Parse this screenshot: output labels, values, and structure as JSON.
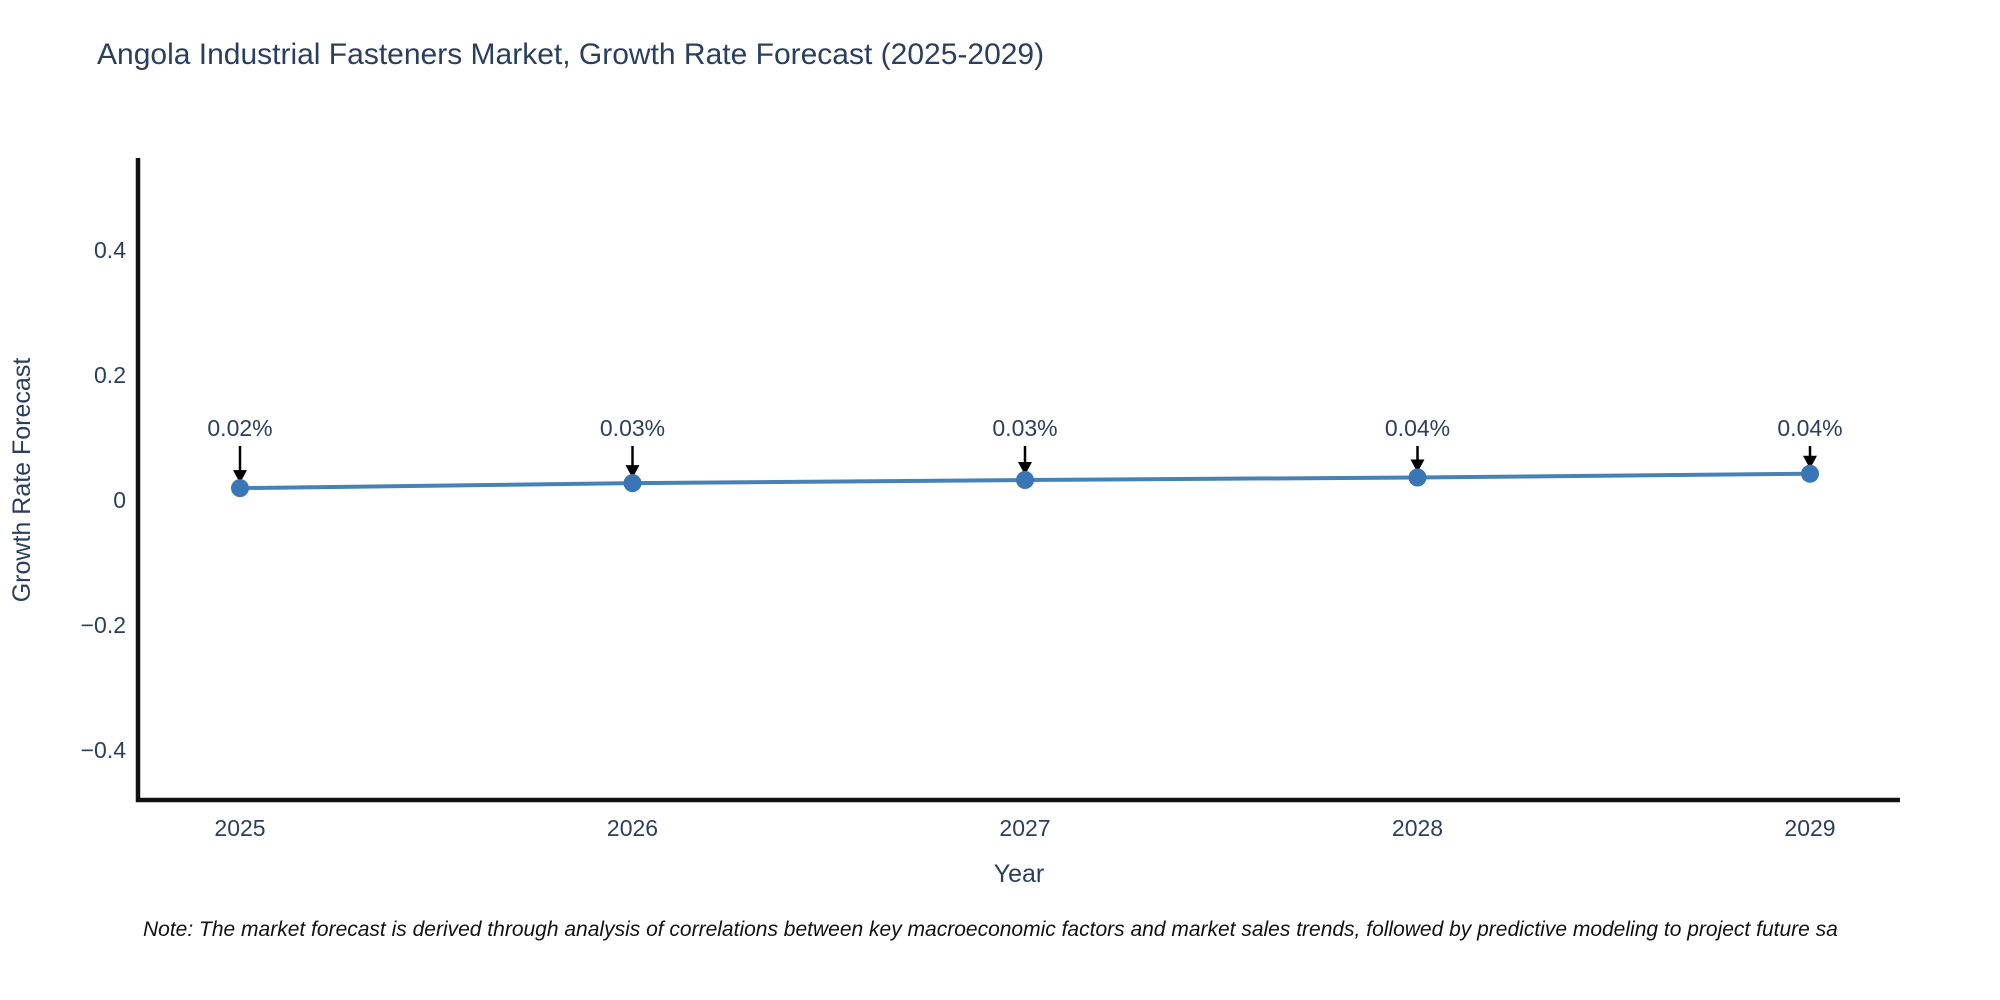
{
  "title": "Angola Industrial Fasteners Market, Growth Rate Forecast (2025-2029)",
  "note": "Note: The market forecast is derived through analysis of correlations between key macroeconomic factors and market sales trends, followed by predictive modeling to project future sa",
  "colors": {
    "line": "#4682b4",
    "marker": "#3a76b6",
    "axis": "#111111",
    "text": "#2a3f5f",
    "arrow": "#000000",
    "background": "#ffffff"
  },
  "chart_data": {
    "type": "line",
    "title": "Angola Industrial Fasteners Market, Growth Rate Forecast (2025-2029)",
    "xlabel": "Year",
    "ylabel": "Growth Rate Forecast",
    "x": [
      2025,
      2026,
      2027,
      2028,
      2029
    ],
    "xtick_labels": [
      "2025",
      "2026",
      "2027",
      "2028",
      "2029"
    ],
    "values": [
      0.02,
      0.03,
      0.03,
      0.04,
      0.04
    ],
    "values_precise": [
      0.019,
      0.027,
      0.032,
      0.036,
      0.042
    ],
    "point_labels": [
      "0.02%",
      "0.03%",
      "0.03%",
      "0.04%",
      "0.04%"
    ],
    "yticks": [
      0.4,
      0.2,
      0,
      -0.2,
      -0.4
    ],
    "ytick_labels": [
      "0.4",
      "0.2",
      "0",
      "−0.2",
      "−0.4"
    ],
    "ylim": [
      -0.48,
      0.54
    ],
    "grid": false,
    "legend": false,
    "annotation_style": "down-arrow"
  }
}
